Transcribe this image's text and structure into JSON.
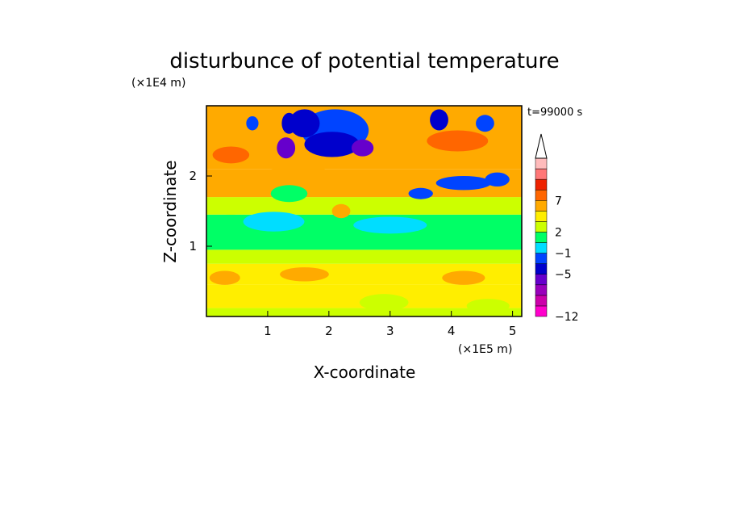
{
  "chart_data": {
    "type": "heatmap",
    "title": "disturbunce of potential temperature",
    "xlabel": "X-coordinate",
    "ylabel": "Z-coordinate",
    "x_unit": "(×1E5 m)",
    "y_unit": "(×1E4 m)",
    "time_label": "t=99000 s",
    "xlim": [
      0,
      5.15
    ],
    "ylim": [
      0,
      3.0
    ],
    "x_ticks": [
      "1",
      "2",
      "3",
      "4",
      "5"
    ],
    "x_tick_values": [
      1,
      2,
      3,
      4,
      5
    ],
    "y_ticks": [
      "1",
      "2"
    ],
    "y_tick_values": [
      1,
      2
    ],
    "colorbar": {
      "levels": [
        -12,
        -11,
        -9,
        -7,
        -5,
        -3,
        -1,
        1,
        2,
        3,
        5,
        7,
        9,
        11
      ],
      "colors": [
        "#ff00cc",
        "#cc00aa",
        "#9900bb",
        "#6600cc",
        "#0000cc",
        "#0044ff",
        "#00ddff",
        "#00ff66",
        "#ccff00",
        "#ffee00",
        "#ffaa00",
        "#ff6600",
        "#ee2200",
        "#ff7777",
        "#ffbbbb"
      ],
      "labels": [
        "−12",
        "−5",
        "−1",
        "2",
        "7"
      ],
      "label_values": [
        -12,
        -5,
        -1,
        2,
        7
      ],
      "extend": "max"
    },
    "layers": [
      {
        "z_range": [
          0.0,
          0.12
        ],
        "theta": 1.6
      },
      {
        "z_range": [
          0.12,
          0.45
        ],
        "theta": 2.5
      },
      {
        "z_range": [
          0.45,
          0.75
        ],
        "theta": 2.6
      },
      {
        "z_range": [
          0.75,
          0.95
        ],
        "theta": 1.5
      },
      {
        "z_range": [
          0.95,
          1.45
        ],
        "theta": -0.5
      },
      {
        "z_range": [
          1.45,
          1.7
        ],
        "theta": 1.5
      },
      {
        "z_range": [
          1.7,
          2.1
        ],
        "theta": 3.6
      },
      {
        "z_range": [
          2.1,
          2.5
        ],
        "theta": 4.5
      },
      {
        "z_range": [
          2.5,
          3.0
        ],
        "theta": 3.3
      }
    ],
    "features": [
      {
        "x": 1.1,
        "z": 1.35,
        "rx": 0.5,
        "rz": 0.14,
        "theta": -1.5
      },
      {
        "x": 2.1,
        "z": 2.65,
        "rx": 0.55,
        "rz": 0.3,
        "theta": -5
      },
      {
        "x": 1.6,
        "z": 2.75,
        "rx": 0.25,
        "rz": 0.2,
        "theta": -7
      },
      {
        "x": 2.05,
        "z": 2.45,
        "rx": 0.45,
        "rz": 0.18,
        "theta": -6
      },
      {
        "x": 2.55,
        "z": 2.4,
        "rx": 0.18,
        "rz": 0.12,
        "theta": -9
      },
      {
        "x": 1.3,
        "z": 2.4,
        "rx": 0.15,
        "rz": 0.15,
        "theta": -9
      },
      {
        "x": 1.35,
        "z": 2.75,
        "rx": 0.12,
        "rz": 0.15,
        "theta": -6
      },
      {
        "x": 0.75,
        "z": 2.75,
        "rx": 0.1,
        "rz": 0.1,
        "theta": -5
      },
      {
        "x": 3.8,
        "z": 2.8,
        "rx": 0.15,
        "rz": 0.15,
        "theta": -6
      },
      {
        "x": 4.55,
        "z": 2.75,
        "rx": 0.15,
        "rz": 0.12,
        "theta": -5
      },
      {
        "x": 4.2,
        "z": 1.9,
        "rx": 0.45,
        "rz": 0.1,
        "theta": -5
      },
      {
        "x": 3.5,
        "z": 1.75,
        "rx": 0.2,
        "rz": 0.08,
        "theta": -4
      },
      {
        "x": 4.75,
        "z": 1.95,
        "rx": 0.2,
        "rz": 0.1,
        "theta": -5
      },
      {
        "x": 1.35,
        "z": 1.75,
        "rx": 0.3,
        "rz": 0.12,
        "theta": 0.2
      },
      {
        "x": 2.2,
        "z": 1.5,
        "rx": 0.15,
        "rz": 0.1,
        "theta": 3
      },
      {
        "x": 0.4,
        "z": 1.55,
        "rx": 0.3,
        "rz": 0.1,
        "theta": 1.5
      },
      {
        "x": 3.0,
        "z": 1.3,
        "rx": 0.6,
        "rz": 0.12,
        "theta": -1.5
      },
      {
        "x": 1.5,
        "z": 2.05,
        "rx": 0.5,
        "rz": 0.1,
        "theta": 4.2
      },
      {
        "x": 0.4,
        "z": 2.3,
        "rx": 0.3,
        "rz": 0.12,
        "theta": 5.5
      },
      {
        "x": 4.1,
        "z": 2.5,
        "rx": 0.5,
        "rz": 0.15,
        "theta": 5.2
      },
      {
        "x": 0.3,
        "z": 0.55,
        "rx": 0.25,
        "rz": 0.1,
        "theta": 3.3
      },
      {
        "x": 1.6,
        "z": 0.6,
        "rx": 0.4,
        "rz": 0.1,
        "theta": 3.3
      },
      {
        "x": 4.2,
        "z": 0.55,
        "rx": 0.35,
        "rz": 0.1,
        "theta": 3.3
      },
      {
        "x": 2.9,
        "z": 0.2,
        "rx": 0.4,
        "rz": 0.12,
        "theta": 1.5
      },
      {
        "x": 4.6,
        "z": 0.15,
        "rx": 0.35,
        "rz": 0.1,
        "theta": 1.5
      }
    ]
  }
}
